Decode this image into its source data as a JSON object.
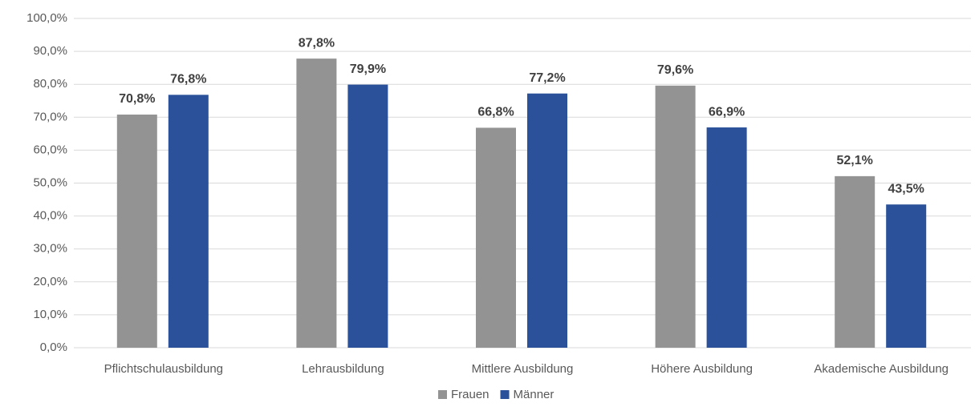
{
  "chart_data": {
    "type": "bar",
    "categories": [
      "Pflichtschulausbildung",
      "Lehrausbildung",
      "Mittlere Ausbildung",
      "Höhere Ausbildung",
      "Akademische Ausbildung"
    ],
    "series": [
      {
        "name": "Frauen",
        "color": "#939393",
        "values": [
          70.8,
          87.8,
          66.8,
          79.6,
          52.1
        ],
        "value_labels": [
          "70,8%",
          "87,8%",
          "66,8%",
          "79,6%",
          "52,1%"
        ]
      },
      {
        "name": "Männer",
        "color": "#2a5199",
        "values": [
          76.8,
          79.9,
          77.2,
          66.9,
          43.5
        ],
        "value_labels": [
          "76,8%",
          "79,9%",
          "77,2%",
          "66,9%",
          "43,5%"
        ]
      }
    ],
    "ylim": [
      0,
      100
    ],
    "yticks": [
      {
        "value": 0,
        "label": "0,0%"
      },
      {
        "value": 10,
        "label": "10,0%"
      },
      {
        "value": 20,
        "label": "20,0%"
      },
      {
        "value": 30,
        "label": "30,0%"
      },
      {
        "value": 40,
        "label": "40,0%"
      },
      {
        "value": 50,
        "label": "50,0%"
      },
      {
        "value": 60,
        "label": "60,0%"
      },
      {
        "value": 70,
        "label": "70,0%"
      },
      {
        "value": 80,
        "label": "80,0%"
      },
      {
        "value": 90,
        "label": "90,0%"
      },
      {
        "value": 100,
        "label": "100,0%"
      }
    ],
    "grid": true
  }
}
